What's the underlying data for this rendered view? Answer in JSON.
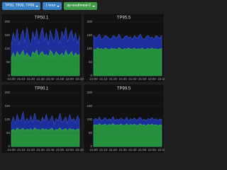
{
  "toolbar": {
    "buttons": [
      "TP50, TP90, TP99",
      "1 hour",
      "ap-southeast-2"
    ]
  },
  "chart_data": [
    {
      "type": "area",
      "title": "TP50.1",
      "categories": [
        "21:00",
        null,
        null,
        null,
        null,
        "21:10",
        null,
        null,
        null,
        null,
        "21:20",
        null,
        null,
        null,
        null,
        "21:30",
        null,
        null,
        null,
        null,
        "21:40",
        null,
        null,
        null,
        null,
        "21:50",
        null,
        null,
        null,
        null,
        "22:00",
        null,
        null,
        null,
        null,
        "22:10"
      ],
      "series": [
        {
          "color": "#1c2f9c",
          "values": [
            120,
            160,
            130,
            175,
            115,
            150,
            170,
            125,
            180,
            140,
            110,
            165,
            135,
            175,
            120,
            155,
            180,
            130,
            160,
            115,
            170,
            145,
            125,
            175,
            150,
            120,
            165,
            140,
            180,
            125,
            155,
            170,
            130,
            160,
            120,
            150
          ]
        },
        {
          "color": "#25903c",
          "values": [
            70,
            85,
            65,
            90,
            75,
            80,
            95,
            70,
            85,
            75,
            65,
            90,
            80,
            95,
            70,
            85,
            90,
            75,
            80,
            70,
            95,
            85,
            70,
            90,
            80,
            75,
            85,
            70,
            95,
            75,
            80,
            90,
            70,
            85,
            75,
            80
          ]
        }
      ],
      "ylim": [
        0,
        200
      ],
      "yticks": [
        0,
        50,
        100,
        150,
        200
      ],
      "grid": true
    },
    {
      "type": "area",
      "title": "TP95.5",
      "categories": [
        "21:00",
        null,
        null,
        null,
        null,
        "21:10",
        null,
        null,
        null,
        null,
        "21:20",
        null,
        null,
        null,
        null,
        "21:30",
        null,
        null,
        null,
        null,
        "21:40",
        null,
        null,
        null,
        null,
        "21:50",
        null,
        null,
        null,
        null,
        "22:00",
        null,
        null,
        null,
        null,
        "22:10"
      ],
      "series": [
        {
          "color": "#1c2f9c",
          "values": [
            150,
            140,
            145,
            155,
            135,
            140,
            150,
            145,
            140,
            135,
            150,
            145,
            140,
            155,
            140,
            135,
            145,
            150,
            140,
            145,
            135,
            150,
            140,
            145,
            155,
            140,
            135,
            145,
            150,
            140,
            145,
            135,
            150,
            145,
            140,
            150
          ]
        },
        {
          "color": "#25903c",
          "values": [
            100,
            95,
            105,
            98,
            102,
            96,
            104,
            100,
            95,
            103,
            99,
            101,
            97,
            105,
            100,
            96,
            102,
            99,
            104,
            98,
            100,
            103,
            97,
            101,
            99,
            104,
            96,
            100,
            102,
            98,
            103,
            99,
            101,
            97,
            100,
            102
          ]
        }
      ],
      "ylim": [
        0,
        200
      ],
      "yticks": [
        0,
        50,
        100,
        150,
        200
      ],
      "grid": true
    },
    {
      "type": "area",
      "title": "TP90.1",
      "categories": [
        "21:00",
        null,
        null,
        null,
        null,
        "21:10",
        null,
        null,
        null,
        null,
        "21:20",
        null,
        null,
        null,
        null,
        "21:30",
        null,
        null,
        null,
        null,
        "21:40",
        null,
        null,
        null,
        null,
        "21:50",
        null,
        null,
        null,
        null,
        "22:00",
        null,
        null,
        null,
        null,
        "22:10"
      ],
      "series": [
        {
          "color": "#1c2f9c",
          "values": [
            90,
            110,
            85,
            120,
            95,
            100,
            130,
            88,
            105,
            92,
            115,
            90,
            125,
            95,
            100,
            88,
            110,
            95,
            120,
            90,
            100,
            115,
            85,
            105,
            95,
            125,
            90,
            100,
            110,
            88,
            120,
            95,
            105,
            90,
            115,
            100
          ]
        },
        {
          "color": "#25903c",
          "values": [
            60,
            65,
            58,
            70,
            62,
            64,
            68,
            60,
            66,
            61,
            67,
            59,
            70,
            63,
            65,
            60,
            68,
            62,
            66,
            61,
            64,
            69,
            58,
            65,
            62,
            70,
            60,
            64,
            67,
            59,
            68,
            63,
            65,
            60,
            66,
            64
          ]
        }
      ],
      "ylim": [
        0,
        200
      ],
      "yticks": [
        0,
        50,
        100,
        150,
        200
      ],
      "grid": true
    },
    {
      "type": "area",
      "title": "TP99.5",
      "categories": [
        "21:00",
        null,
        null,
        null,
        null,
        "21:10",
        null,
        null,
        null,
        null,
        "21:20",
        null,
        null,
        null,
        null,
        "21:30",
        null,
        null,
        null,
        null,
        "21:40",
        null,
        null,
        null,
        null,
        "21:50",
        null,
        null,
        null,
        null,
        "22:00",
        null,
        null,
        null,
        null,
        "22:10"
      ],
      "series": [
        {
          "color": "#1c2f9c",
          "values": [
            100,
            105,
            98,
            110,
            95,
            102,
            108,
            97,
            104,
            100,
            112,
            96,
            103,
            99,
            106,
            101,
            98,
            110,
            95,
            104,
            100,
            107,
            97,
            103,
            109,
            98,
            102,
            96,
            105,
            100,
            108,
            99,
            104,
            97,
            103,
            101
          ]
        },
        {
          "color": "#25903c",
          "values": [
            80,
            82,
            78,
            85,
            79,
            81,
            84,
            77,
            83,
            80,
            86,
            78,
            82,
            79,
            84,
            80,
            78,
            85,
            77,
            83,
            80,
            84,
            78,
            81,
            85,
            79,
            82,
            77,
            83,
            80,
            84,
            79,
            82,
            78,
            81,
            80
          ]
        }
      ],
      "ylim": [
        0,
        200
      ],
      "yticks": [
        0,
        50,
        100,
        150,
        200
      ],
      "grid": true
    }
  ]
}
